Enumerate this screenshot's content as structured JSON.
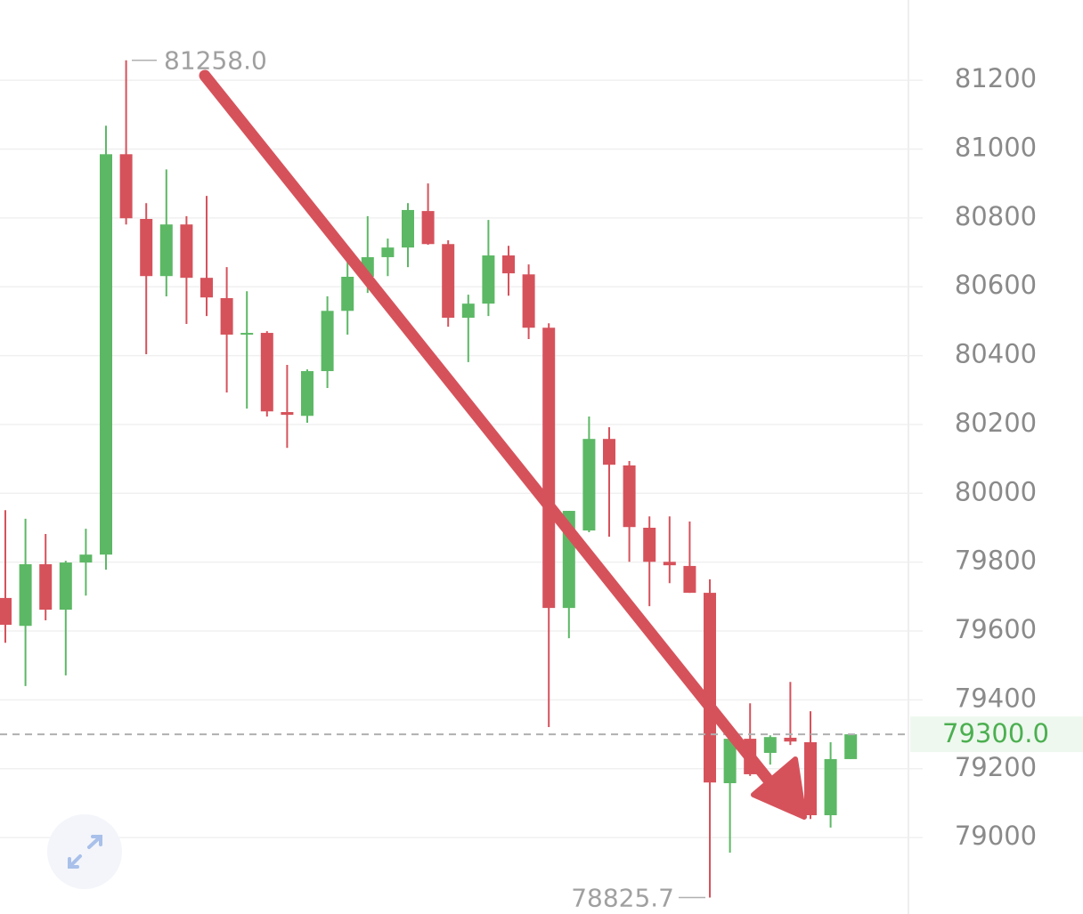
{
  "chart_data": {
    "type": "candlestick",
    "up_color": "#5cb865",
    "down_color": "#d6525b",
    "open": [
      79696,
      79615,
      79794,
      79662,
      79799,
      79822,
      80985,
      80797,
      80631,
      80781,
      80626,
      80567,
      80461,
      80466,
      80236,
      80225,
      80355,
      80530,
      80629,
      80686,
      80714,
      80820,
      80724,
      80510,
      80551,
      80691,
      80636,
      80481,
      79667,
      79892,
      80158,
      80081,
      79900,
      79801,
      79789,
      79711,
      79158,
      79287,
      79246,
      79290,
      79277,
      79065,
      79228
    ],
    "high": [
      79951,
      79926,
      79882,
      79804,
      79897,
      81068,
      81258,
      80843,
      80941,
      80805,
      80864,
      80657,
      80587,
      80471,
      80373,
      80360,
      80572,
      80683,
      80805,
      80740,
      80843,
      80900,
      80735,
      80577,
      80794,
      80719,
      80665,
      80494,
      79949,
      80223,
      80192,
      80094,
      79933,
      79933,
      79918,
      79750,
      79292,
      79390,
      79297,
      79452,
      79367,
      79277,
      79300
    ],
    "low": [
      79566,
      79440,
      79631,
      79471,
      79703,
      79778,
      80781,
      80404,
      80572,
      80492,
      80515,
      80293,
      80246,
      80223,
      80132,
      80205,
      80306,
      80461,
      80582,
      80631,
      80657,
      80722,
      80484,
      80381,
      80515,
      80574,
      80448,
      79321,
      79579,
      79887,
      79874,
      79801,
      79672,
      79739,
      79711,
      78825.7,
      78956,
      79179,
      79212,
      79269,
      79054,
      79029,
      79228
    ],
    "close": [
      79618,
      79794,
      79662,
      79799,
      79822,
      80985,
      80799,
      80631,
      80781,
      80626,
      80569,
      80461,
      80466,
      80238,
      80228,
      80355,
      80530,
      80629,
      80686,
      80714,
      80823,
      80724,
      80510,
      80551,
      80691,
      80639,
      80481,
      79667,
      79949,
      80158,
      80083,
      79902,
      79801,
      79791,
      79711,
      79160,
      79287,
      79184,
      79292,
      79279,
      79065,
      79228,
      79300
    ],
    "high_label": {
      "value": 81258,
      "label": "81258.0"
    },
    "low_label": {
      "value": 78825.7,
      "label": "78825.7"
    },
    "last_price": {
      "value": 79300,
      "label": "79300.0"
    },
    "ylim": [
      78778,
      81433
    ],
    "yticks": [
      79000,
      79200,
      79400,
      79600,
      79800,
      80000,
      80200,
      80400,
      80600,
      80800,
      81000,
      81200
    ],
    "grid": true
  }
}
